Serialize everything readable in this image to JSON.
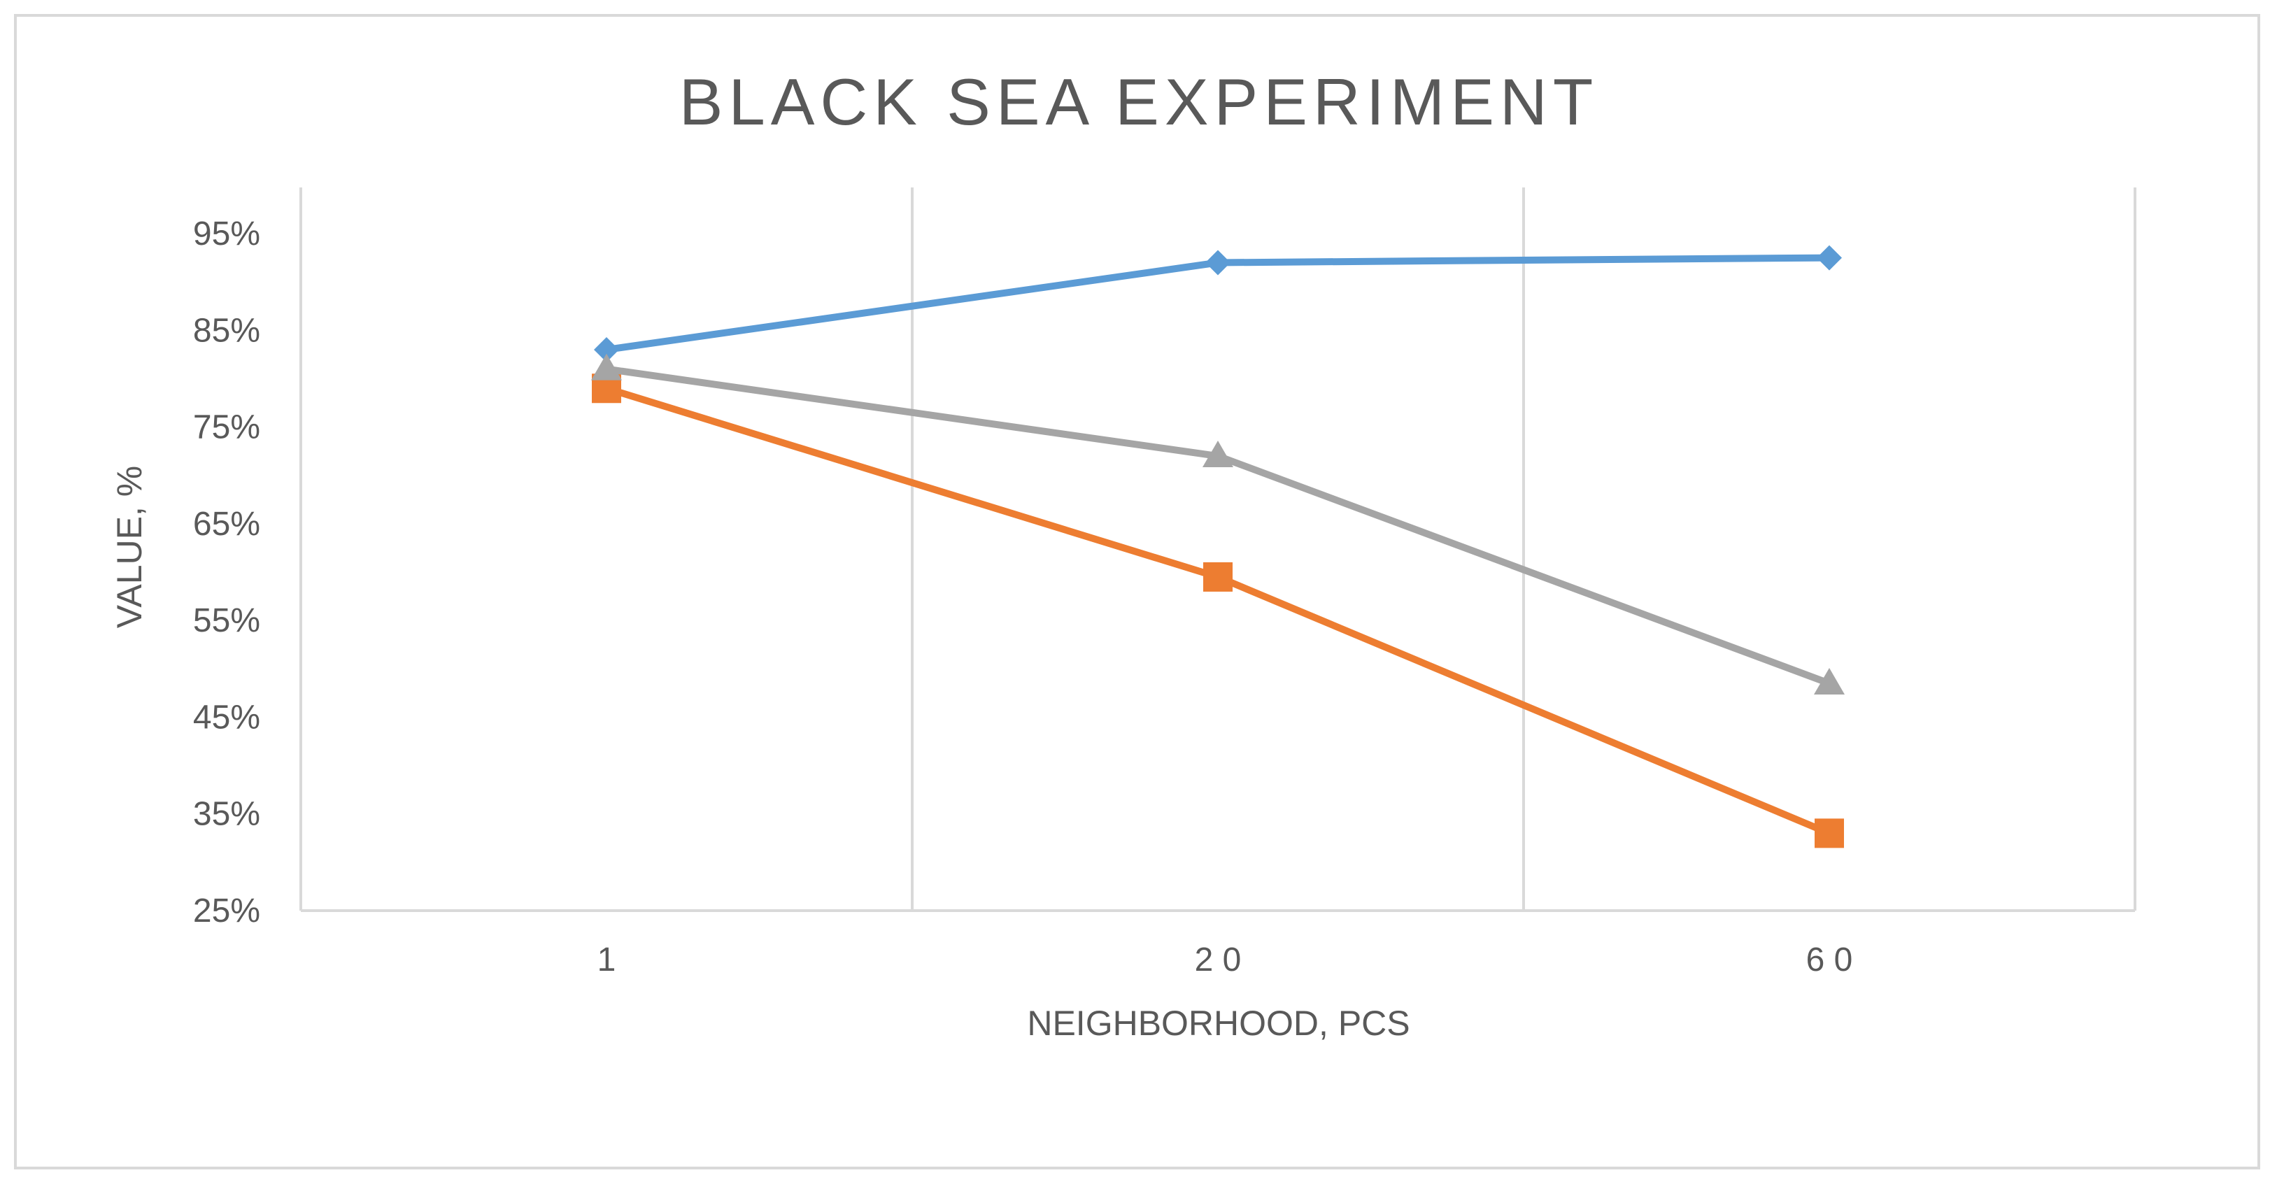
{
  "chart_data": {
    "type": "line",
    "title": "BLACK SEA EXPERIMENT",
    "xlabel": "NEIGHBORHOOD, PCS",
    "ylabel": "VALUE, %",
    "categories": [
      "1",
      "20",
      "60"
    ],
    "category_labels": [
      "1",
      "2 0",
      "6 0"
    ],
    "ylim": [
      25,
      95
    ],
    "yticks": [
      25,
      35,
      45,
      55,
      65,
      75,
      85,
      95
    ],
    "ytick_labels": [
      "25%",
      "35%",
      "45%",
      "55%",
      "65%",
      "75%",
      "85%",
      "95%"
    ],
    "grid": "vertical",
    "legend": "none",
    "series": [
      {
        "values": [
          83,
          92,
          92.5
        ],
        "color": "#5b9bd5",
        "marker": "diamond"
      },
      {
        "values": [
          79,
          59.5,
          33
        ],
        "color": "#ed7d31",
        "marker": "square"
      },
      {
        "values": [
          81,
          72,
          48.5
        ],
        "color": "#a5a5a5",
        "marker": "triangle"
      }
    ]
  }
}
